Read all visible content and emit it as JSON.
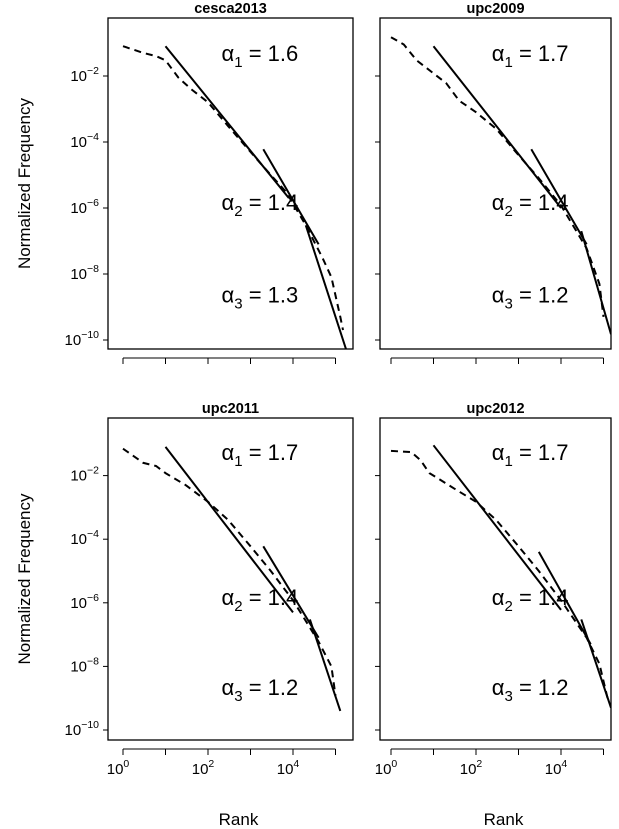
{
  "chart_data": [
    {
      "type": "line",
      "title": "cesca2013",
      "xlabel": "",
      "ylabel": "Normalized Frequency",
      "xscale": "log",
      "yscale": "log",
      "xlim": [
        1,
        200000
      ],
      "ylim": [
        1e-10,
        0.2
      ],
      "annotations": [
        {
          "greek": "α",
          "sub": "1",
          "text": " = 1.6",
          "alpha": 1.6
        },
        {
          "greek": "α",
          "sub": "2",
          "text": " = 1.4",
          "alpha": 1.4
        },
        {
          "greek": "α",
          "sub": "3",
          "text": " = 1.3",
          "alpha": 1.3
        }
      ],
      "series": [
        {
          "style": "dashed",
          "x": [
            1,
            3,
            6,
            10,
            20,
            40,
            100,
            300,
            1000,
            3000,
            7000,
            20000,
            50000,
            80000,
            130000,
            150000
          ],
          "y": [
            0.08,
            0.05,
            0.04,
            0.03,
            0.009,
            0.004,
            0.0016,
            0.0003,
            5e-05,
            1e-05,
            3e-06,
            3e-07,
            3e-08,
            8e-09,
            5e-10,
            2e-10
          ]
        },
        {
          "style": "solid",
          "x": [
            10,
            8000
          ],
          "y": [
            0.08,
            2e-06
          ]
        },
        {
          "style": "solid",
          "x": [
            2000,
            40000
          ],
          "y": [
            6e-05,
            8e-08
          ]
        },
        {
          "style": "solid",
          "x": [
            20000,
            190000
          ],
          "y": [
            3e-07,
            4e-11
          ]
        }
      ]
    },
    {
      "type": "line",
      "title": "upc2009",
      "xlabel": "",
      "ylabel": "",
      "xscale": "log",
      "yscale": "log",
      "xlim": [
        1,
        200000
      ],
      "ylim": [
        1e-10,
        0.2
      ],
      "annotations": [
        {
          "greek": "α",
          "sub": "1",
          "text": " = 1.7",
          "alpha": 1.7
        },
        {
          "greek": "α",
          "sub": "2",
          "text": " = 1.4",
          "alpha": 1.4
        },
        {
          "greek": "α",
          "sub": "3",
          "text": " = 1.2",
          "alpha": 1.2
        }
      ],
      "series": [
        {
          "style": "dashed",
          "x": [
            1,
            2,
            4,
            10,
            20,
            40,
            100,
            300,
            1000,
            3000,
            10000,
            40000,
            80000,
            100000
          ],
          "y": [
            0.15,
            0.09,
            0.03,
            0.012,
            0.006,
            0.0018,
            0.0008,
            0.00025,
            4e-05,
            8e-06,
            1.2e-06,
            6e-08,
            5e-09,
            5e-10
          ]
        },
        {
          "style": "solid",
          "x": [
            10,
            10000
          ],
          "y": [
            0.08,
            1e-06
          ]
        },
        {
          "style": "solid",
          "x": [
            2000,
            40000
          ],
          "y": [
            6e-05,
            8e-08
          ]
        },
        {
          "style": "solid",
          "x": [
            30000,
            150000
          ],
          "y": [
            2e-07,
            1.5e-10
          ]
        }
      ]
    },
    {
      "type": "line",
      "title": "upc2011",
      "xlabel": "Rank",
      "ylabel": "Normalized Frequency",
      "xscale": "log",
      "yscale": "log",
      "xlim": [
        1,
        200000
      ],
      "ylim": [
        1e-10,
        0.2
      ],
      "annotations": [
        {
          "greek": "α",
          "sub": "1",
          "text": " = 1.7",
          "alpha": 1.7
        },
        {
          "greek": "α",
          "sub": "2",
          "text": " = 1.4",
          "alpha": 1.4
        },
        {
          "greek": "α",
          "sub": "3",
          "text": " = 1.2",
          "alpha": 1.2
        }
      ],
      "series": [
        {
          "style": "dashed",
          "x": [
            1,
            3,
            6,
            10,
            30,
            100,
            300,
            1000,
            3000,
            10000,
            40000,
            80000,
            100000
          ],
          "y": [
            0.07,
            0.025,
            0.02,
            0.012,
            0.005,
            0.0015,
            0.0004,
            6e-05,
            1e-05,
            1.2e-06,
            6e-08,
            1e-08,
            1.2e-09
          ]
        },
        {
          "style": "solid",
          "x": [
            10,
            10000
          ],
          "y": [
            0.08,
            5e-07
          ]
        },
        {
          "style": "solid",
          "x": [
            2000,
            40000
          ],
          "y": [
            6e-05,
            8e-08
          ]
        },
        {
          "style": "solid",
          "x": [
            25000,
            130000
          ],
          "y": [
            3e-07,
            4e-10
          ]
        }
      ]
    },
    {
      "type": "line",
      "title": "upc2012",
      "xlabel": "Rank",
      "ylabel": "",
      "xscale": "log",
      "yscale": "log",
      "xlim": [
        1,
        200000
      ],
      "ylim": [
        1e-10,
        0.2
      ],
      "annotations": [
        {
          "greek": "α",
          "sub": "1",
          "text": " = 1.7",
          "alpha": 1.7
        },
        {
          "greek": "α",
          "sub": "2",
          "text": " = 1.4",
          "alpha": 1.4
        },
        {
          "greek": "α",
          "sub": "3",
          "text": " = 1.2",
          "alpha": 1.2
        }
      ],
      "series": [
        {
          "style": "dashed",
          "x": [
            1,
            3,
            5,
            8,
            10,
            30,
            100,
            300,
            1000,
            3000,
            10000,
            40000,
            80000,
            130000
          ],
          "y": [
            0.06,
            0.055,
            0.03,
            0.012,
            0.01,
            0.004,
            0.0015,
            0.0004,
            6e-05,
            1e-05,
            1.2e-06,
            8e-08,
            1.2e-08,
            8e-10
          ]
        },
        {
          "style": "solid",
          "x": [
            10,
            10000
          ],
          "y": [
            0.09,
            6e-07
          ]
        },
        {
          "style": "solid",
          "x": [
            3000,
            50000
          ],
          "y": [
            4e-05,
            5e-08
          ]
        },
        {
          "style": "solid",
          "x": [
            30000,
            150000
          ],
          "y": [
            3e-07,
            5e-10
          ]
        }
      ]
    }
  ]
}
